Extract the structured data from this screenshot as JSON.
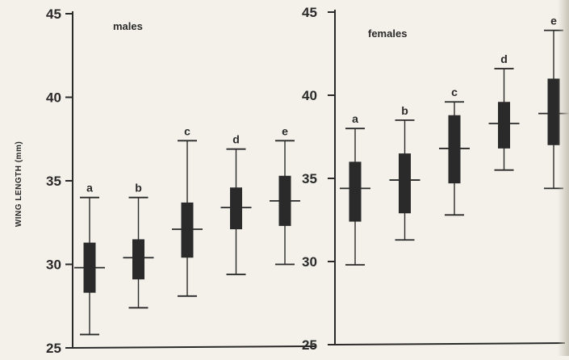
{
  "colors": {
    "ink": "#2a2a2a",
    "paper": "#f3f1ea"
  },
  "chart_data": [
    {
      "type": "boxplot",
      "title": "males",
      "ylabel": "WING LENGTH (mm)",
      "ylim": [
        25,
        45
      ],
      "yticks": [
        "25",
        "30",
        "35",
        "40",
        "45"
      ],
      "grid": false,
      "boxes": [
        {
          "label": "a",
          "whisker_low": 25.8,
          "q1": 28.3,
          "median": 29.8,
          "q3": 31.3,
          "whisker_high": 34.0
        },
        {
          "label": "b",
          "whisker_low": 27.4,
          "q1": 29.1,
          "median": 30.4,
          "q3": 31.5,
          "whisker_high": 34.0
        },
        {
          "label": "c",
          "whisker_low": 28.1,
          "q1": 30.4,
          "median": 32.1,
          "q3": 33.7,
          "whisker_high": 37.4
        },
        {
          "label": "d",
          "whisker_low": 29.4,
          "q1": 32.1,
          "median": 33.4,
          "q3": 34.6,
          "whisker_high": 36.9
        },
        {
          "label": "e",
          "whisker_low": 30.0,
          "q1": 32.3,
          "median": 33.8,
          "q3": 35.3,
          "whisker_high": 37.4
        }
      ]
    },
    {
      "type": "boxplot",
      "title": "females",
      "ylim": [
        25,
        45
      ],
      "yticks": [
        "25",
        "30",
        "35",
        "40",
        "45"
      ],
      "grid": false,
      "boxes": [
        {
          "label": "a",
          "whisker_low": 29.8,
          "q1": 32.4,
          "median": 34.4,
          "q3": 36.0,
          "whisker_high": 38.0
        },
        {
          "label": "b",
          "whisker_low": 31.3,
          "q1": 32.9,
          "median": 34.9,
          "q3": 36.5,
          "whisker_high": 38.5
        },
        {
          "label": "c",
          "whisker_low": 32.8,
          "q1": 34.7,
          "median": 36.8,
          "q3": 38.8,
          "whisker_high": 39.6
        },
        {
          "label": "d",
          "whisker_low": 35.5,
          "q1": 36.8,
          "median": 38.3,
          "q3": 39.6,
          "whisker_high": 41.6
        },
        {
          "label": "e",
          "whisker_low": 34.4,
          "q1": 37.0,
          "median": 38.9,
          "q3": 41.0,
          "whisker_high": 43.9
        }
      ]
    }
  ]
}
